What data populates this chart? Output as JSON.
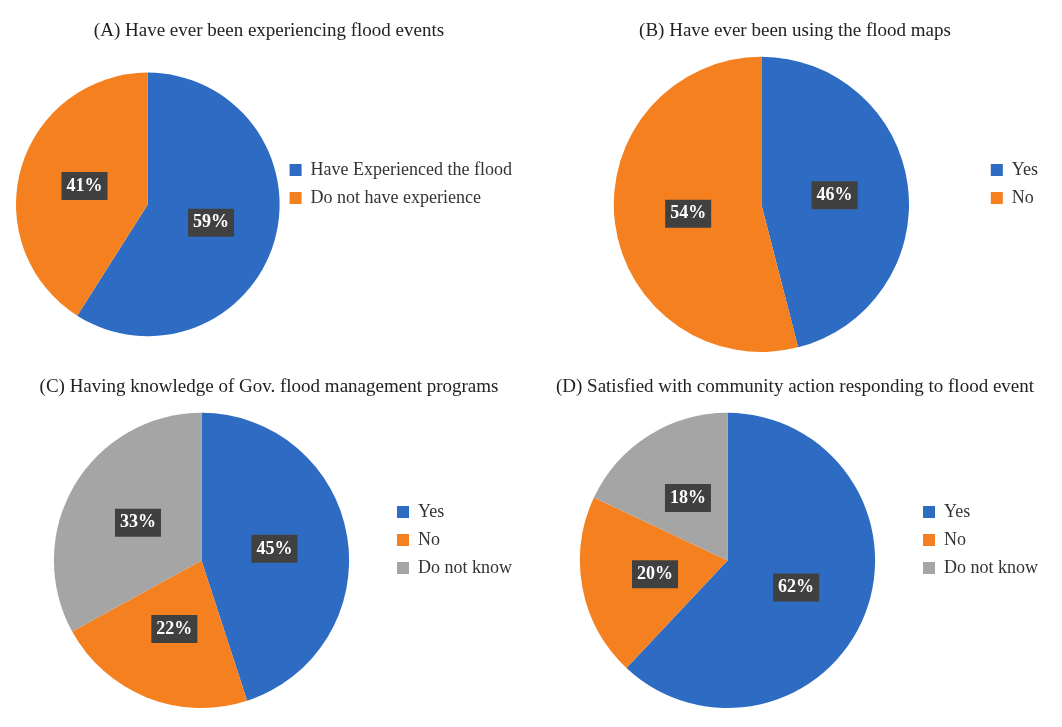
{
  "chart_data": [
    {
      "type": "pie",
      "title": "(A) Have ever been experiencing flood events",
      "categories": [
        "Have Experienced the flood",
        "Do not have experience"
      ],
      "values": [
        59,
        41
      ],
      "colors": [
        "#2e6bc2",
        "#f5801f"
      ],
      "value_labels": [
        "59%",
        "41%"
      ],
      "legend": "right"
    },
    {
      "type": "pie",
      "title": "(B) Have ever been using the flood maps",
      "categories": [
        "Yes",
        "No"
      ],
      "values": [
        46,
        54
      ],
      "colors": [
        "#2e6bc2",
        "#f5801f"
      ],
      "value_labels": [
        "46%",
        "54%"
      ],
      "legend": "right"
    },
    {
      "type": "pie",
      "title": "(C) Having knowledge of Gov. flood management programs",
      "categories": [
        "Yes",
        "No",
        "Do not know"
      ],
      "values": [
        45,
        22,
        33
      ],
      "colors": [
        "#2e6bc2",
        "#f5801f",
        "#a5a5a5"
      ],
      "value_labels": [
        "45%",
        "22%",
        "33%"
      ],
      "legend": "right"
    },
    {
      "type": "pie",
      "title": "(D) Satisfied with community action responding to flood event",
      "categories": [
        "Yes",
        "No",
        "Do not know"
      ],
      "values": [
        62,
        20,
        18
      ],
      "colors": [
        "#2e6bc2",
        "#f5801f",
        "#a5a5a5"
      ],
      "value_labels": [
        "62%",
        "20%",
        "18%"
      ],
      "legend": "right"
    }
  ]
}
